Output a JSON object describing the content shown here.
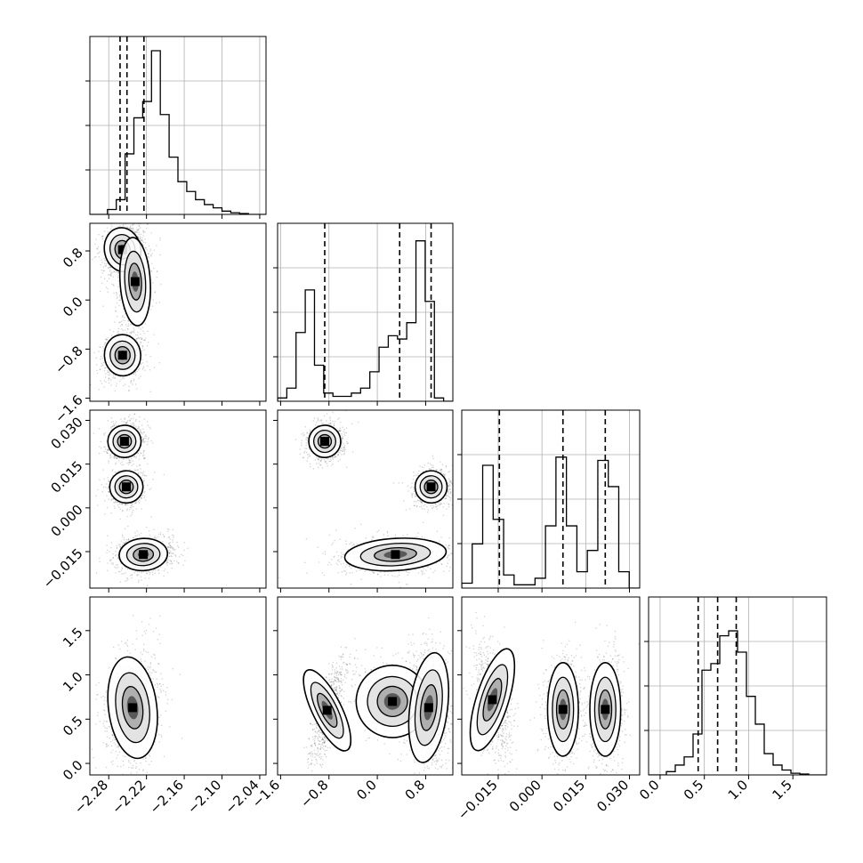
{
  "chart_data": {
    "type": "corner",
    "params": [
      {
        "ticks": [
          -2.28,
          -2.22,
          -2.16,
          -2.1,
          -2.04
        ],
        "tick_labels": [
          "−2.28",
          "−2.22",
          "−2.16",
          "−2.10",
          "−2.04"
        ],
        "range": [
          -2.31,
          -2.03
        ]
      },
      {
        "ticks": [
          -1.6,
          -0.8,
          0.0,
          0.8
        ],
        "tick_labels": [
          "−1.6",
          "−0.8",
          "0.0",
          "0.8"
        ],
        "range": [
          -1.65,
          1.25
        ]
      },
      {
        "ticks": [
          -0.015,
          0.0,
          0.015,
          0.03
        ],
        "tick_labels": [
          "−0.015",
          "0.000",
          "0.015",
          "0.030"
        ],
        "range": [
          -0.0275,
          0.0335
        ]
      },
      {
        "ticks": [
          0.0,
          0.5,
          1.0,
          1.5
        ],
        "tick_labels": [
          "0.0",
          "0.5",
          "1.0",
          "1.5"
        ],
        "range": [
          -0.13,
          1.88
        ]
      }
    ],
    "quantiles": [
      [
        -2.262,
        -2.251,
        -2.224
      ],
      [
        -0.87,
        0.37,
        0.89
      ],
      [
        -0.0146,
        0.0072,
        0.0217
      ],
      [
        0.43,
        0.65,
        0.86
      ]
    ],
    "histograms": [
      {
        "counts": [
          0,
          0,
          0.03,
          0.09,
          0.37,
          0.59,
          0.69,
          1.0,
          0.61,
          0.35,
          0.2,
          0.14,
          0.09,
          0.06,
          0.04,
          0.02,
          0.01,
          0.005,
          0,
          0
        ]
      },
      {
        "counts": [
          0.02,
          0.08,
          0.42,
          0.68,
          0.22,
          0.05,
          0.03,
          0.03,
          0.05,
          0.08,
          0.18,
          0.33,
          0.4,
          0.38,
          0.48,
          0.98,
          0.61,
          0.02,
          0
        ]
      },
      {
        "counts": [
          0.03,
          0.27,
          0.75,
          0.42,
          0.08,
          0.02,
          0.02,
          0.06,
          0.38,
          0.8,
          0.38,
          0.1,
          0.23,
          0.78,
          0.62,
          0.1,
          0
        ]
      },
      {
        "counts": [
          0,
          0,
          0.02,
          0.06,
          0.11,
          0.25,
          0.64,
          0.68,
          0.85,
          0.88,
          0.75,
          0.48,
          0.31,
          0.13,
          0.06,
          0.03,
          0.01,
          0.005,
          0,
          0
        ]
      }
    ],
    "clusters": {
      "1_0": [
        {
          "x": -2.258,
          "y": 0.82,
          "sx": 0.012,
          "sy": 0.15,
          "rho": 0.3,
          "w": 1.0
        },
        {
          "x": -2.238,
          "y": 0.3,
          "sx": 0.01,
          "sy": 0.3,
          "rho": 0.1,
          "w": 0.6
        },
        {
          "x": -2.258,
          "y": -0.9,
          "sx": 0.012,
          "sy": 0.14,
          "rho": 0.1,
          "w": 0.8
        }
      ],
      "2_0": [
        {
          "x": -2.255,
          "y": 0.0228,
          "sx": 0.011,
          "sy": 0.0023,
          "rho": 0.1,
          "w": 0.8
        },
        {
          "x": -2.252,
          "y": 0.0072,
          "sx": 0.011,
          "sy": 0.0023,
          "rho": 0.1,
          "w": 0.8
        },
        {
          "x": -2.225,
          "y": -0.016,
          "sx": 0.016,
          "sy": 0.0023,
          "rho": 0.1,
          "w": 1.0
        }
      ],
      "2_1": [
        {
          "x": -0.87,
          "y": 0.0228,
          "sx": 0.11,
          "sy": 0.0023,
          "rho": 0.1,
          "w": 0.8
        },
        {
          "x": 0.89,
          "y": 0.0072,
          "sx": 0.11,
          "sy": 0.0023,
          "rho": 0.1,
          "w": 0.8
        },
        {
          "x": 0.3,
          "y": -0.016,
          "sx": 0.35,
          "sy": 0.0023,
          "rho": 0.1,
          "w": 1.0
        }
      ],
      "3_0": [
        {
          "x": -2.242,
          "y": 0.63,
          "sx": 0.016,
          "sy": 0.24,
          "rho": 0.2,
          "w": 1.0
        }
      ],
      "3_1": [
        {
          "x": -0.83,
          "y": 0.6,
          "sx": 0.1,
          "sy": 0.21,
          "rho": 0.75,
          "w": 0.7
        },
        {
          "x": 0.25,
          "y": 0.7,
          "sx": 0.25,
          "sy": 0.17,
          "rho": -0.4,
          "w": 0.6
        },
        {
          "x": 0.85,
          "y": 0.63,
          "sx": 0.13,
          "sy": 0.26,
          "rho": -0.2,
          "w": 0.8
        }
      ],
      "3_2": [
        {
          "x": -0.017,
          "y": 0.72,
          "sx": 0.0023,
          "sy": 0.25,
          "rho": -0.5,
          "w": 0.8
        },
        {
          "x": 0.0072,
          "y": 0.61,
          "sx": 0.0022,
          "sy": 0.22,
          "rho": 0.0,
          "w": 0.8
        },
        {
          "x": 0.0217,
          "y": 0.61,
          "sx": 0.0022,
          "sy": 0.22,
          "rho": 0.0,
          "w": 0.8
        }
      ]
    },
    "grid": true,
    "colors": {
      "line": "#000000",
      "grid": "#b0b0b0",
      "points": "#000000"
    }
  }
}
